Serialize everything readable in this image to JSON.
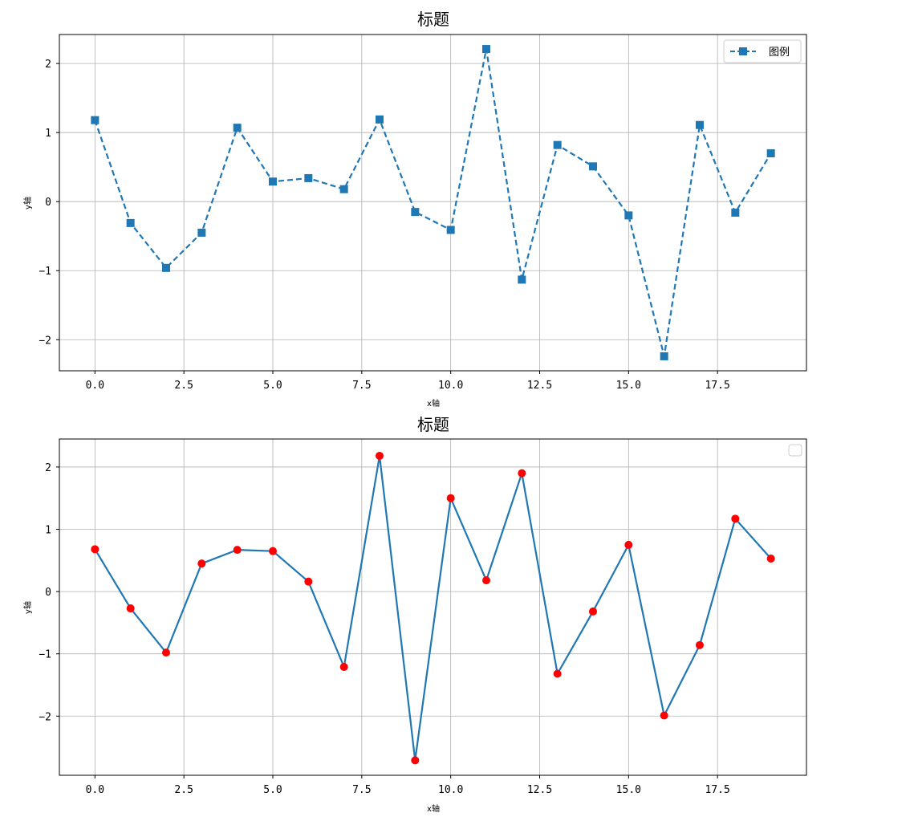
{
  "chart_data": [
    {
      "type": "line",
      "title": "标题",
      "xlabel": "x轴",
      "ylabel": "y轴",
      "xlim": [
        -1,
        20
      ],
      "ylim": [
        -2.45,
        2.42
      ],
      "xticks": [
        "0.0",
        "2.5",
        "5.0",
        "7.5",
        "10.0",
        "12.5",
        "15.0",
        "17.5"
      ],
      "yticks": [
        "−2",
        "−1",
        "0",
        "1",
        "2"
      ],
      "grid": true,
      "legend": {
        "placement": "top-right",
        "entries": [
          "图例"
        ]
      },
      "series": [
        {
          "name": "图例",
          "color": "#1f77b4",
          "line_style": "dashed",
          "marker": "square",
          "x": [
            0,
            1,
            2,
            3,
            4,
            5,
            6,
            7,
            8,
            9,
            10,
            11,
            12,
            13,
            14,
            15,
            16,
            17,
            18,
            19
          ],
          "y": [
            1.18,
            -0.31,
            -0.96,
            -0.45,
            1.07,
            0.29,
            0.34,
            0.18,
            1.19,
            -0.15,
            -0.41,
            2.21,
            -1.13,
            0.82,
            0.51,
            -0.2,
            -2.24,
            1.11,
            -0.16,
            0.7
          ]
        }
      ]
    },
    {
      "type": "line",
      "title": "标题",
      "xlabel": "x轴",
      "ylabel": "y轴",
      "xlim": [
        -1,
        20
      ],
      "ylim": [
        -2.95,
        2.45
      ],
      "xticks": [
        "0.0",
        "2.5",
        "5.0",
        "7.5",
        "10.0",
        "12.5",
        "15.0",
        "17.5"
      ],
      "yticks": [
        "−2",
        "−1",
        "0",
        "1",
        "2"
      ],
      "grid": true,
      "legend": {
        "placement": "top-right",
        "entries": []
      },
      "series": [
        {
          "color": "#1f77b4",
          "marker_color": "#ff0000",
          "line_style": "solid",
          "marker": "circle",
          "x": [
            0,
            1,
            2,
            3,
            4,
            5,
            6,
            7,
            8,
            9,
            10,
            11,
            12,
            13,
            14,
            15,
            16,
            17,
            18,
            19
          ],
          "y": [
            0.68,
            -0.27,
            -0.98,
            0.45,
            0.67,
            0.65,
            0.16,
            -1.21,
            2.18,
            -2.71,
            1.5,
            0.18,
            1.9,
            -1.32,
            -0.32,
            0.75,
            -1.99,
            -0.86,
            1.17,
            0.53
          ]
        }
      ]
    }
  ]
}
